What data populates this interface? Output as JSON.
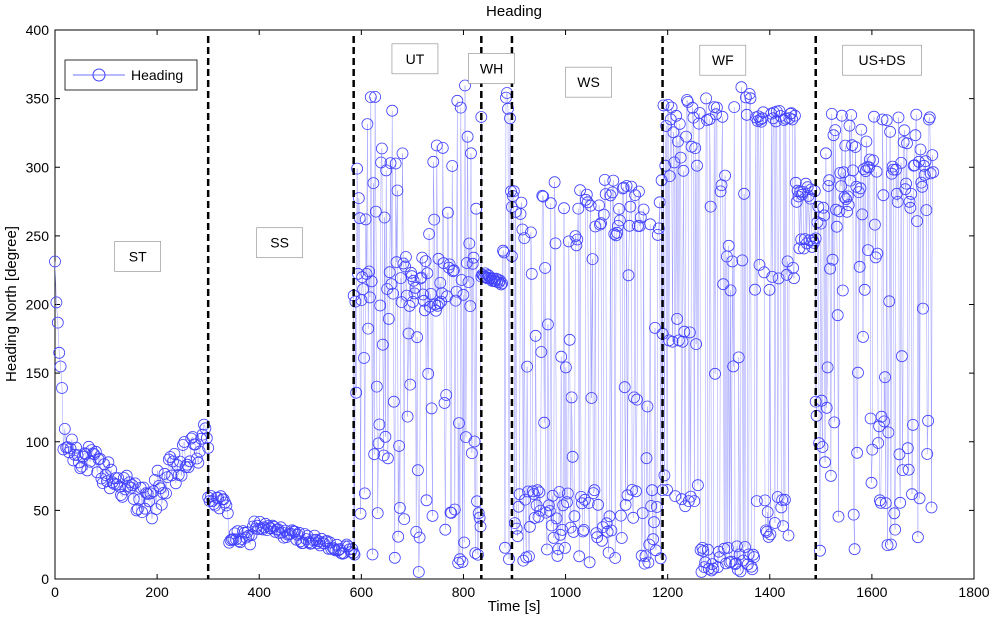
{
  "chart_data": {
    "type": "scatter",
    "title": "Heading",
    "xlabel": "Time [s]",
    "ylabel": "Heading North [degree]",
    "xlim": [
      0,
      1800
    ],
    "ylim": [
      0,
      400
    ],
    "xticks": [
      0,
      200,
      400,
      600,
      800,
      1000,
      1200,
      1400,
      1600,
      1800
    ],
    "yticks": [
      0,
      50,
      100,
      150,
      200,
      250,
      300,
      350,
      400
    ],
    "grid": false,
    "legend": {
      "position": "top-left",
      "entries": [
        "Heading"
      ]
    },
    "colors": {
      "series": "#4040ff",
      "line": "#9999ff",
      "divider": "#000000"
    },
    "dividers": [
      300,
      585,
      835,
      895,
      1190,
      1490
    ],
    "segment_labels": [
      {
        "label": "ST",
        "x": 162,
        "y": 235
      },
      {
        "label": "SS",
        "x": 440,
        "y": 245
      },
      {
        "label": "UT",
        "x": 705,
        "y": 379
      },
      {
        "label": "WH",
        "x": 855,
        "y": 372
      },
      {
        "label": "WS",
        "x": 1045,
        "y": 362
      },
      {
        "label": "WF",
        "x": 1308,
        "y": 378
      },
      {
        "label": "US+DS",
        "x": 1620,
        "y": 378
      }
    ],
    "series": [
      {
        "name": "Heading",
        "segments": [
          {
            "t0": 0,
            "t1": 300,
            "n": 110,
            "kind": "st"
          },
          {
            "t0": 300,
            "t1": 585,
            "n": 105,
            "kind": "ss"
          },
          {
            "t0": 585,
            "t1": 835,
            "n": 150,
            "kind": "ut"
          },
          {
            "t0": 835,
            "t1": 895,
            "n": 32,
            "kind": "wh"
          },
          {
            "t0": 895,
            "t1": 1190,
            "n": 160,
            "kind": "ws"
          },
          {
            "t0": 1190,
            "t1": 1490,
            "n": 170,
            "kind": "wf"
          },
          {
            "t0": 1490,
            "t1": 1720,
            "n": 140,
            "kind": "us"
          }
        ]
      }
    ]
  }
}
